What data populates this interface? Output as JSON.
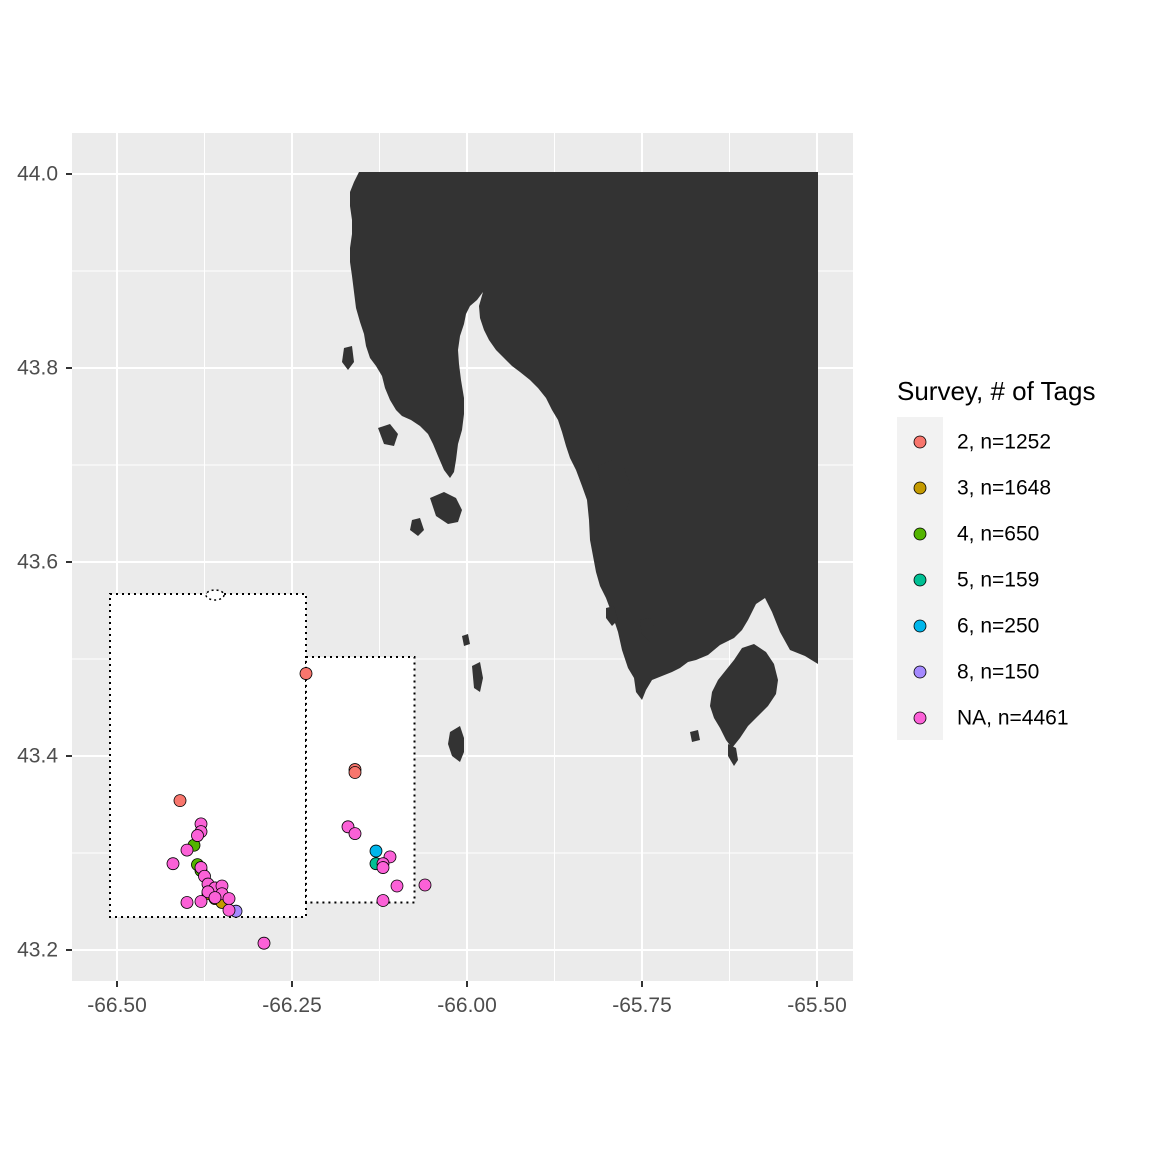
{
  "map": {
    "x_ticks": [
      {
        "value": -66.5,
        "label": "-66.50"
      },
      {
        "value": -66.25,
        "label": "-66.25"
      },
      {
        "value": -66.0,
        "label": "-66.00"
      },
      {
        "value": -65.75,
        "label": "-65.75"
      },
      {
        "value": -65.5,
        "label": "-65.50"
      }
    ],
    "y_ticks": [
      {
        "value": 43.2,
        "label": "43.2"
      },
      {
        "value": 43.4,
        "label": "43.4"
      },
      {
        "value": 43.6,
        "label": "43.6"
      },
      {
        "value": 43.8,
        "label": "43.8"
      },
      {
        "value": 44.0,
        "label": "44.0"
      }
    ],
    "xlim": [
      -66.55,
      -65.45
    ],
    "ylim": [
      43.16,
      44.04
    ],
    "panel_color": "#ebebeb",
    "grid_color": "#ffffff",
    "land_color": "#333333",
    "survey_areas": [
      {
        "name": "survey-area-west",
        "lon": [
          -66.51,
          -66.23
        ],
        "lat": [
          43.234,
          43.567
        ]
      },
      {
        "name": "survey-area-east",
        "lon": [
          -66.23,
          -66.075
        ],
        "lat": [
          43.249,
          43.502
        ]
      }
    ]
  },
  "legend": {
    "title": "Survey, # of Tags",
    "items": [
      {
        "label": "2, n=1252",
        "color": "#F8766D"
      },
      {
        "label": "3, n=1648",
        "color": "#C49A00"
      },
      {
        "label": "4, n=650",
        "color": "#53B400"
      },
      {
        "label": "5, n=159",
        "color": "#00C094"
      },
      {
        "label": "6, n=250",
        "color": "#00B6EB"
      },
      {
        "label": "8, n=150",
        "color": "#A58AFF"
      },
      {
        "label": "NA, n=4461",
        "color": "#FB61D7"
      }
    ]
  },
  "chart_data": {
    "type": "scatter",
    "xlabel": "",
    "ylabel": "",
    "xlim": [
      -66.55,
      -65.45
    ],
    "ylim": [
      43.16,
      44.04
    ],
    "grid": true,
    "legend_position": "right",
    "series": [
      {
        "name": "2, n=1252",
        "color": "#F8766D",
        "points": [
          [
            -66.23,
            43.485
          ],
          [
            -66.16,
            43.386
          ],
          [
            -66.16,
            43.383
          ],
          [
            -66.41,
            43.354
          ]
        ]
      },
      {
        "name": "3, n=1648",
        "color": "#C49A00",
        "points": [
          [
            -66.37,
            43.258
          ],
          [
            -66.36,
            43.253
          ],
          [
            -66.35,
            43.249
          ]
        ]
      },
      {
        "name": "4, n=650",
        "color": "#53B400",
        "points": [
          [
            -66.39,
            43.308
          ],
          [
            -66.38,
            43.282
          ],
          [
            -66.385,
            43.288
          ]
        ]
      },
      {
        "name": "5, n=159",
        "color": "#00C094",
        "points": [
          [
            -66.13,
            43.289
          ]
        ]
      },
      {
        "name": "6, n=250",
        "color": "#00B6EB",
        "points": [
          [
            -66.13,
            43.302
          ]
        ]
      },
      {
        "name": "8, n=150",
        "color": "#A58AFF",
        "points": [
          [
            -66.33,
            43.24
          ]
        ]
      },
      {
        "name": "NA, n=4461",
        "color": "#FB61D7",
        "points": [
          [
            -66.38,
            43.33
          ],
          [
            -66.38,
            43.322
          ],
          [
            -66.385,
            43.318
          ],
          [
            -66.4,
            43.303
          ],
          [
            -66.42,
            43.289
          ],
          [
            -66.38,
            43.285
          ],
          [
            -66.375,
            43.276
          ],
          [
            -66.37,
            43.268
          ],
          [
            -66.36,
            43.264
          ],
          [
            -66.37,
            43.26
          ],
          [
            -66.35,
            43.266
          ],
          [
            -66.35,
            43.258
          ],
          [
            -66.34,
            43.253
          ],
          [
            -66.36,
            43.254
          ],
          [
            -66.38,
            43.25
          ],
          [
            -66.4,
            43.249
          ],
          [
            -66.34,
            43.241
          ],
          [
            -66.29,
            43.207
          ],
          [
            -66.17,
            43.327
          ],
          [
            -66.16,
            43.32
          ],
          [
            -66.11,
            43.296
          ],
          [
            -66.12,
            43.289
          ],
          [
            -66.12,
            43.285
          ],
          [
            -66.1,
            43.266
          ],
          [
            -66.06,
            43.267
          ],
          [
            -66.12,
            43.251
          ]
        ]
      }
    ]
  }
}
